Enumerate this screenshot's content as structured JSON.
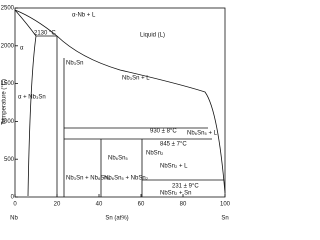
{
  "chart_data": {
    "type": "phase",
    "y_label": "Temperature (°C)",
    "x_label": "Sn (at%)",
    "x_start_label": "Nb",
    "x_end_label": "Sn",
    "xlim": [
      0,
      100
    ],
    "xticks": [
      0,
      20,
      40,
      60,
      80,
      100
    ],
    "ylim": [
      0,
      2500
    ],
    "yticks": [
      0,
      500,
      1000,
      1500,
      2000,
      2500
    ],
    "annotations": [
      "α-Nb + L",
      "2130 °C",
      "α",
      "Liquid (L)",
      "Nb₃Sn",
      "Nb₃Sn + L",
      "α + Nb₃Sn",
      "930 ± 8°C",
      "Nb₆Sn₅ + L",
      "845 ± 7°C",
      "Nb₆Sn₅",
      "NbSn₂",
      "NbSn₂ + L",
      "Nb₃Sn + Nb₆Sn₅",
      "Nb₆Sn₅ + NbSn₂",
      "231 ± 9°C",
      "NbSn₂ + Sn"
    ]
  }
}
